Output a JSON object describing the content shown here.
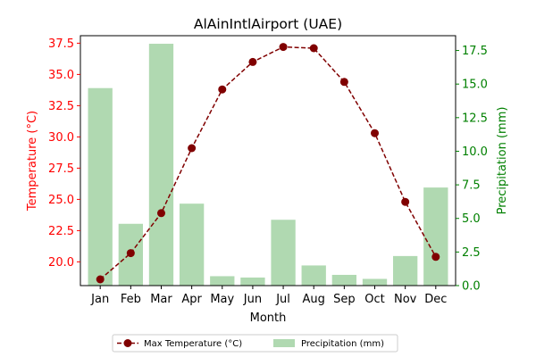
{
  "chart_data": {
    "type": "bar+line",
    "title": "AlAinIntlAirport (UAE)",
    "xlabel": "Month",
    "ylabel_left": "Temperature (°C)",
    "ylabel_right": "Precipitation (mm)",
    "categories": [
      "Jan",
      "Feb",
      "Mar",
      "Apr",
      "May",
      "Jun",
      "Jul",
      "Aug",
      "Sep",
      "Oct",
      "Nov",
      "Dec"
    ],
    "left_axis": {
      "ylim": [
        18.1,
        38.1
      ],
      "ticks": [
        "20.0",
        "22.5",
        "25.0",
        "27.5",
        "30.0",
        "32.5",
        "35.0",
        "37.5"
      ],
      "color": "#ff0000"
    },
    "right_axis": {
      "ylim": [
        0,
        18.6
      ],
      "ticks": [
        "0.0",
        "2.5",
        "5.0",
        "7.5",
        "10.0",
        "12.5",
        "15.0",
        "17.5"
      ],
      "color": "#008000"
    },
    "series": [
      {
        "name": "Max Temperature (°C)",
        "kind": "line",
        "axis": "left",
        "color": "#800000",
        "values": [
          18.6,
          20.7,
          23.9,
          29.1,
          33.8,
          36.0,
          37.2,
          37.1,
          34.4,
          30.3,
          24.8,
          20.4
        ]
      },
      {
        "name": "Precipitation (mm)",
        "kind": "bar",
        "axis": "right",
        "color": "#b0d9b1",
        "values": [
          14.7,
          4.6,
          18.0,
          6.1,
          0.7,
          0.6,
          4.9,
          1.5,
          0.8,
          0.5,
          2.2,
          7.3
        ]
      }
    ],
    "legend": "bottom-center",
    "grid": false
  }
}
